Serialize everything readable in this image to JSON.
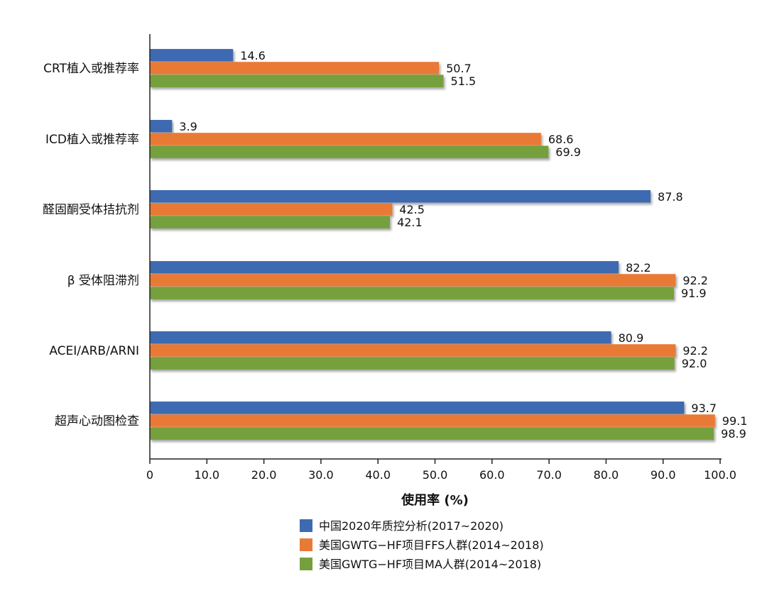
{
  "chart_data": {
    "type": "bar",
    "orientation": "horizontal",
    "title": "",
    "xlabel": "使用率 (%)",
    "ylabel": "",
    "xlim": [
      0,
      100
    ],
    "xticks": [
      "0",
      "10.0",
      "20.0",
      "30.0",
      "40.0",
      "50.0",
      "60.0",
      "70.0",
      "80.0",
      "90.0",
      "100.0"
    ],
    "categories": [
      "CRT植入或推荐率",
      "ICD植入或推荐率",
      "醛固酮受体拮抗剂",
      "β 受体阻滞剂",
      "ACEI/ARB/ARNI",
      "超声心动图检查"
    ],
    "series": [
      {
        "name": "中国2020年质控分析(2017~2020)",
        "color": "#3d6bb0",
        "values": [
          14.6,
          3.9,
          87.8,
          82.2,
          80.9,
          93.7
        ],
        "labels": [
          "14.6",
          "3.9",
          "87.8",
          "82.2",
          "80.9",
          "93.7"
        ]
      },
      {
        "name": "美国GWTG−HF项目FFS人群(2014~2018)",
        "color": "#e87a36",
        "values": [
          50.7,
          68.6,
          42.5,
          92.2,
          92.2,
          99.1
        ],
        "labels": [
          "50.7",
          "68.6",
          "42.5",
          "92.2",
          "92.2",
          "99.1"
        ]
      },
      {
        "name": "美国GWTG−HF项目MA人群(2014~2018)",
        "color": "#76a03c",
        "values": [
          51.5,
          69.9,
          42.1,
          91.9,
          92.0,
          98.9
        ],
        "labels": [
          "51.5",
          "69.9",
          "42.1",
          "91.9",
          "92.0",
          "98.9"
        ]
      }
    ],
    "legend_position": "bottom"
  }
}
